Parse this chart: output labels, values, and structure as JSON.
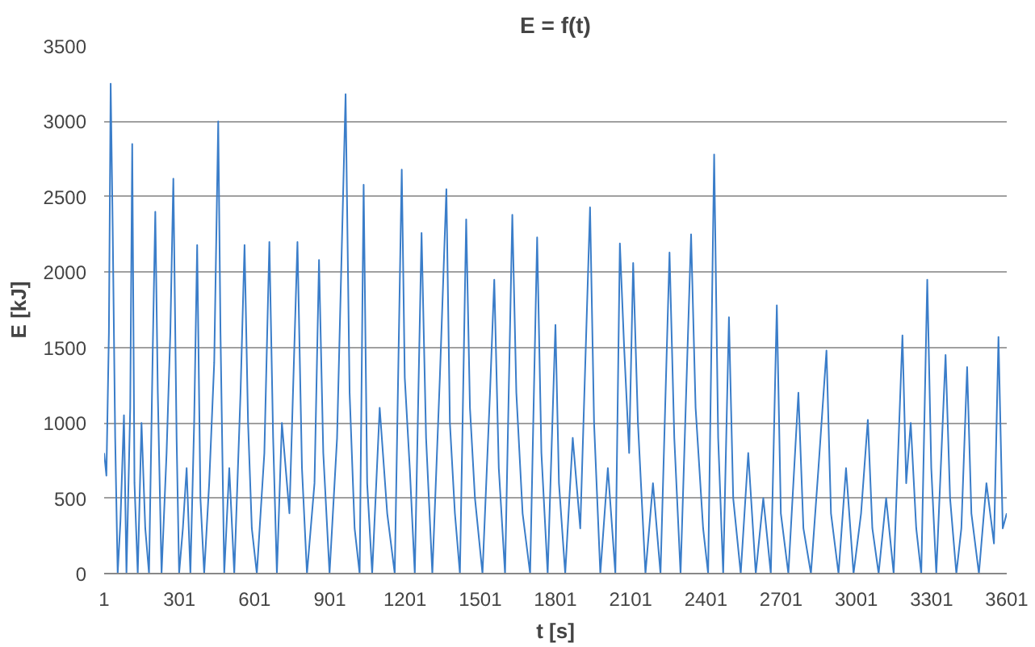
{
  "chart_data": {
    "type": "line",
    "title": "E = f(t)",
    "xlabel": "t [s]",
    "ylabel": "E [kJ]",
    "xlim": [
      1,
      3601
    ],
    "ylim": [
      0,
      3500
    ],
    "xticks": [
      1,
      301,
      601,
      901,
      1201,
      1501,
      1801,
      2101,
      2401,
      2701,
      3001,
      3301,
      3601
    ],
    "yticks": [
      0,
      500,
      1000,
      1500,
      2000,
      2500,
      3000,
      3500
    ],
    "grid": "y",
    "marker": "none",
    "line_style": "solid",
    "series": [
      {
        "color": "#3a7dc9",
        "x": [
          1,
          10,
          20,
          27,
          35,
          45,
          55,
          66,
          80,
          90,
          105,
          113,
          122,
          135,
          150,
          165,
          180,
          195,
          205,
          215,
          230,
          250,
          265,
          277,
          290,
          300,
          315,
          330,
          345,
          360,
          372,
          385,
          400,
          420,
          440,
          456,
          465,
          480,
          500,
          520,
          545,
          561,
          575,
          590,
          610,
          640,
          660,
          675,
          690,
          710,
          740,
          772,
          790,
          810,
          840,
          858,
          875,
          900,
          930,
          964,
          980,
          1000,
          1020,
          1036,
          1050,
          1070,
          1100,
          1130,
          1160,
          1188,
          1200,
          1220,
          1240,
          1267,
          1285,
          1310,
          1340,
          1366,
          1380,
          1400,
          1420,
          1445,
          1460,
          1480,
          1510,
          1540,
          1557,
          1575,
          1600,
          1629,
          1645,
          1670,
          1700,
          1728,
          1745,
          1770,
          1801,
          1815,
          1840,
          1870,
          1900,
          1939,
          1955,
          1980,
          2010,
          2040,
          2058,
          2075,
          2095,
          2111,
          2130,
          2160,
          2190,
          2220,
          2256,
          2275,
          2300,
          2342,
          2360,
          2390,
          2410,
          2434,
          2450,
          2470,
          2493,
          2510,
          2540,
          2570,
          2600,
          2630,
          2660,
          2684,
          2700,
          2730,
          2770,
          2790,
          2820,
          2850,
          2882,
          2900,
          2930,
          2960,
          2990,
          3020,
          3047,
          3065,
          3090,
          3120,
          3150,
          3185,
          3200,
          3218,
          3240,
          3260,
          3284,
          3300,
          3320,
          3357,
          3375,
          3400,
          3420,
          3443,
          3460,
          3490,
          3520,
          3550,
          3568,
          3585,
          3601
        ],
        "values": [
          800,
          650,
          1600,
          3250,
          2300,
          900,
          0,
          350,
          1050,
          0,
          1100,
          2850,
          600,
          0,
          1000,
          300,
          0,
          1500,
          2400,
          1200,
          0,
          800,
          1600,
          2620,
          900,
          0,
          300,
          700,
          0,
          1000,
          2180,
          500,
          0,
          600,
          1400,
          3000,
          1600,
          0,
          700,
          0,
          1200,
          2180,
          1000,
          300,
          0,
          800,
          2200,
          900,
          0,
          1000,
          400,
          2200,
          700,
          0,
          600,
          2080,
          800,
          0,
          900,
          3180,
          1200,
          300,
          0,
          2580,
          600,
          0,
          1100,
          400,
          0,
          2680,
          1300,
          700,
          0,
          2260,
          900,
          0,
          1300,
          2550,
          1000,
          400,
          0,
          2350,
          1100,
          500,
          0,
          1200,
          1950,
          700,
          0,
          2380,
          1200,
          400,
          0,
          2230,
          800,
          0,
          1650,
          600,
          0,
          900,
          300,
          2430,
          1000,
          0,
          700,
          0,
          2190,
          1500,
          800,
          2060,
          1000,
          0,
          600,
          0,
          2130,
          900,
          0,
          2250,
          1100,
          300,
          0,
          2780,
          900,
          0,
          1700,
          500,
          0,
          800,
          0,
          500,
          0,
          1780,
          400,
          0,
          1200,
          300,
          0,
          700,
          1480,
          400,
          0,
          700,
          0,
          400,
          1020,
          300,
          0,
          500,
          0,
          1580,
          600,
          1000,
          300,
          0,
          1950,
          700,
          0,
          1450,
          500,
          0,
          300,
          1370,
          400,
          0,
          600,
          200,
          1570,
          300,
          400
        ]
      }
    ]
  }
}
